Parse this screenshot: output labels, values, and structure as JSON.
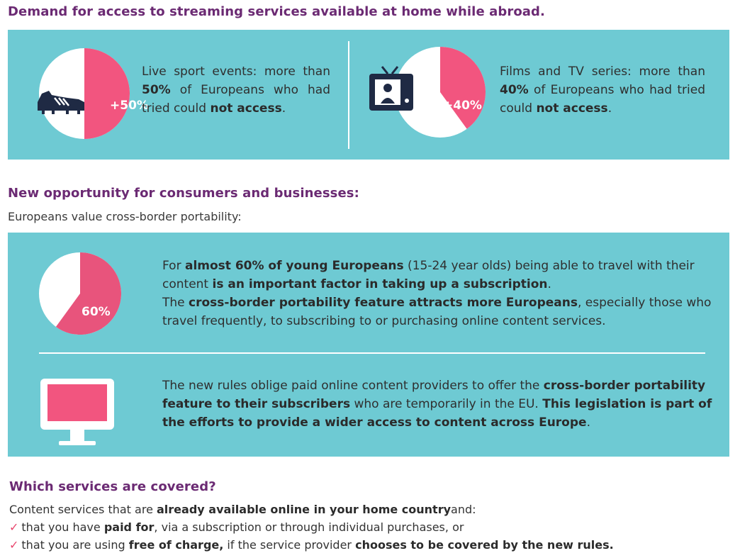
{
  "section1": {
    "title": "Demand for access to streaming services available at home while abroad.",
    "sport": {
      "badge": "+50%",
      "text_a": "Live sport events: more than ",
      "text_b": "50%",
      "text_c": " of Europeans who had tried could ",
      "text_d": "not access",
      "text_e": "."
    },
    "films": {
      "badge": "+40%",
      "text_a": "Films and TV series: more than ",
      "text_b": "40%",
      "text_c": " of Europeans who had tried could ",
      "text_d": "not access",
      "text_e": "."
    }
  },
  "section2": {
    "title": "New opportunity for consumers and businesses:",
    "subtitle": "Europeans value cross-border portability:",
    "young": {
      "badge": "60%",
      "p1_a": "For ",
      "p1_b": "almost 60% of young Europeans",
      "p1_c": " (15-24 year olds) being able to travel with their content ",
      "p1_d": "is an important factor in taking up a subscription",
      "p1_e": ".",
      "p2_a": "The ",
      "p2_b": "cross-border portability feature attracts more Europeans",
      "p2_c": ", especially those who travel frequently, to subscribing to or purchasing online content services."
    },
    "rules": {
      "a": "The new rules oblige paid online content providers to offer the ",
      "b": "cross-border portability feature to their subscribers",
      "c": " who are temporarily in the EU. ",
      "d": "This legislation is part of the efforts to provide a wider access to content across Europe",
      "e": "."
    }
  },
  "section3": {
    "title": "Which services are covered?",
    "intro_a": "Content services that are ",
    "intro_b": "already available online in your home country",
    "intro_c": "and:",
    "items": [
      {
        "a": "that you have ",
        "b": "paid for",
        "c": ", via a subscription or through individual purchases, or",
        "d": "",
        "e": ""
      },
      {
        "a": "that you are using ",
        "b": "free of charge,",
        "c": " if the service provider ",
        "d": "chooses to be covered by the new rules.",
        "e": ""
      }
    ]
  },
  "charts": {
    "sport_share": 50,
    "films_share": 40,
    "young_share": 60
  },
  "colors": {
    "panel": "#6ecad3",
    "accent": "#f2557f",
    "heading": "#6b2a73",
    "icon_dark": "#1f2a44"
  },
  "icons": [
    "football-boot-icon",
    "television-icon",
    "monitor-icon",
    "check-icon"
  ]
}
